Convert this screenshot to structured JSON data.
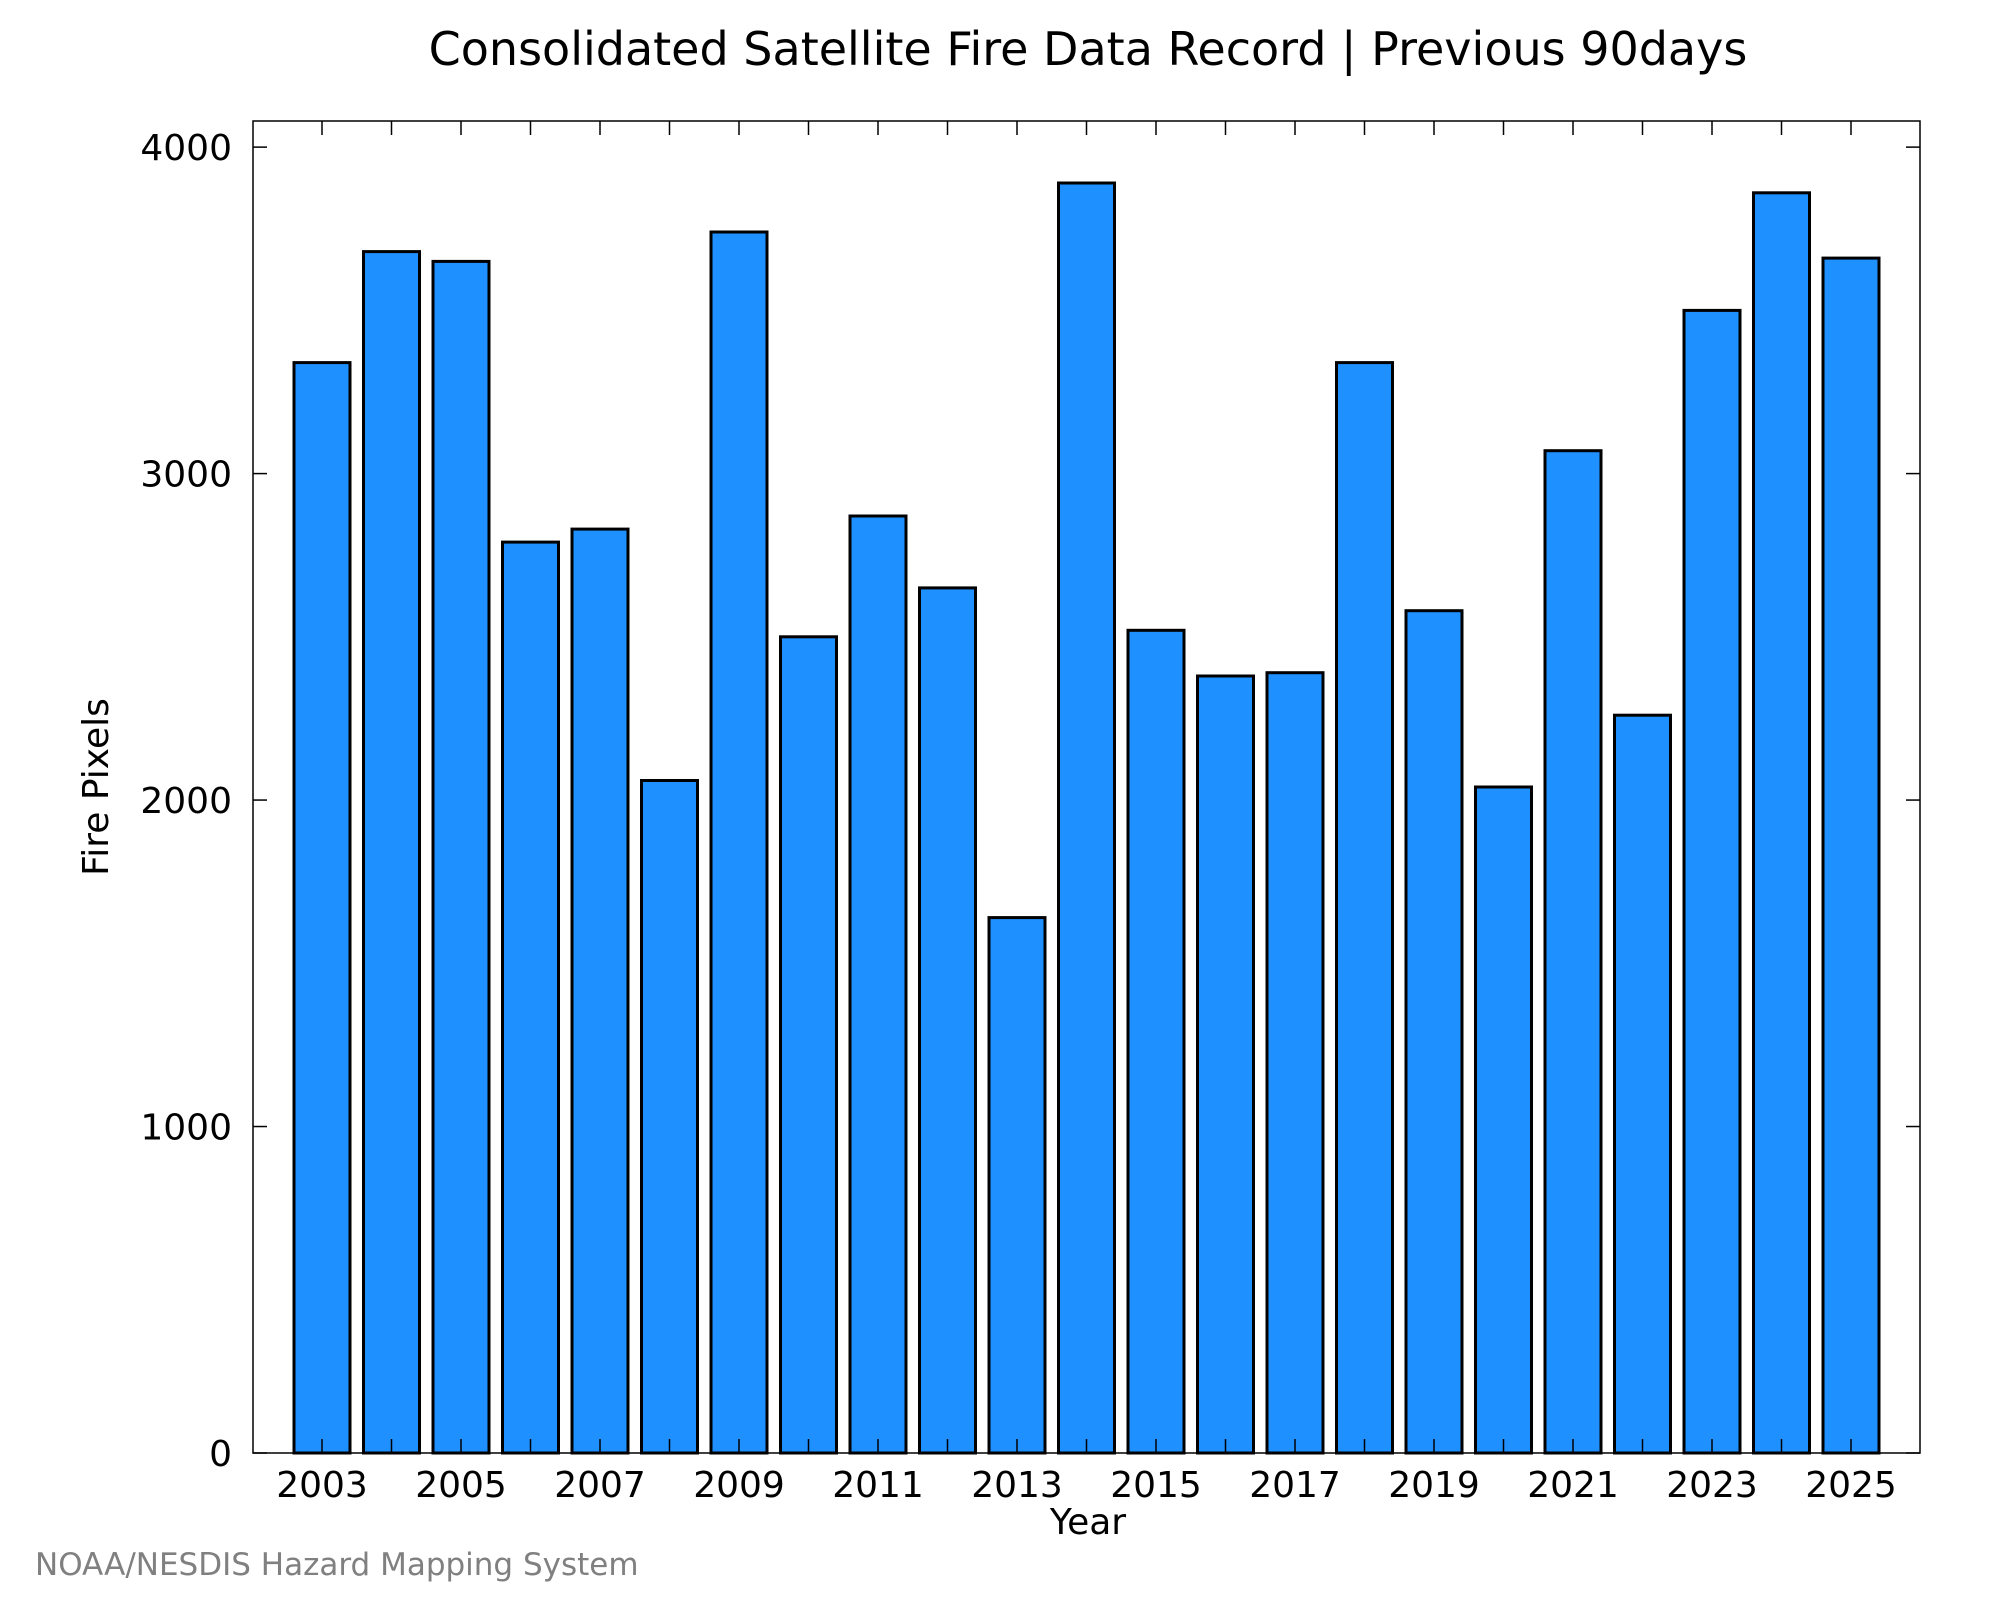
{
  "chart_data": {
    "type": "bar",
    "title": "Consolidated Satellite Fire Data Record | Previous 90days",
    "xlabel": "Year",
    "ylabel": "Fire Pixels",
    "credit": "NOAA/NESDIS Hazard Mapping System",
    "bar_color": "#1e90ff",
    "ylim": [
      0,
      4080
    ],
    "y_ticks": [
      0,
      1000,
      2000,
      3000,
      4000
    ],
    "x_tick_labels": [
      "2003",
      "2005",
      "2007",
      "2009",
      "2011",
      "2013",
      "2015",
      "2017",
      "2019",
      "2021",
      "2023",
      "2025"
    ],
    "grid": false,
    "categories": [
      "2003",
      "2004",
      "2005",
      "2006",
      "2007",
      "2008",
      "2009",
      "2010",
      "2011",
      "2012",
      "2013",
      "2014",
      "2015",
      "2016",
      "2017",
      "2018",
      "2019",
      "2020",
      "2021",
      "2022",
      "2023",
      "2024",
      "2025"
    ],
    "values": [
      3340,
      3680,
      3650,
      2790,
      2830,
      2060,
      3740,
      2500,
      2870,
      2650,
      1640,
      3890,
      2520,
      2380,
      2390,
      3340,
      2580,
      2040,
      3070,
      2260,
      3500,
      3860,
      3660
    ]
  }
}
